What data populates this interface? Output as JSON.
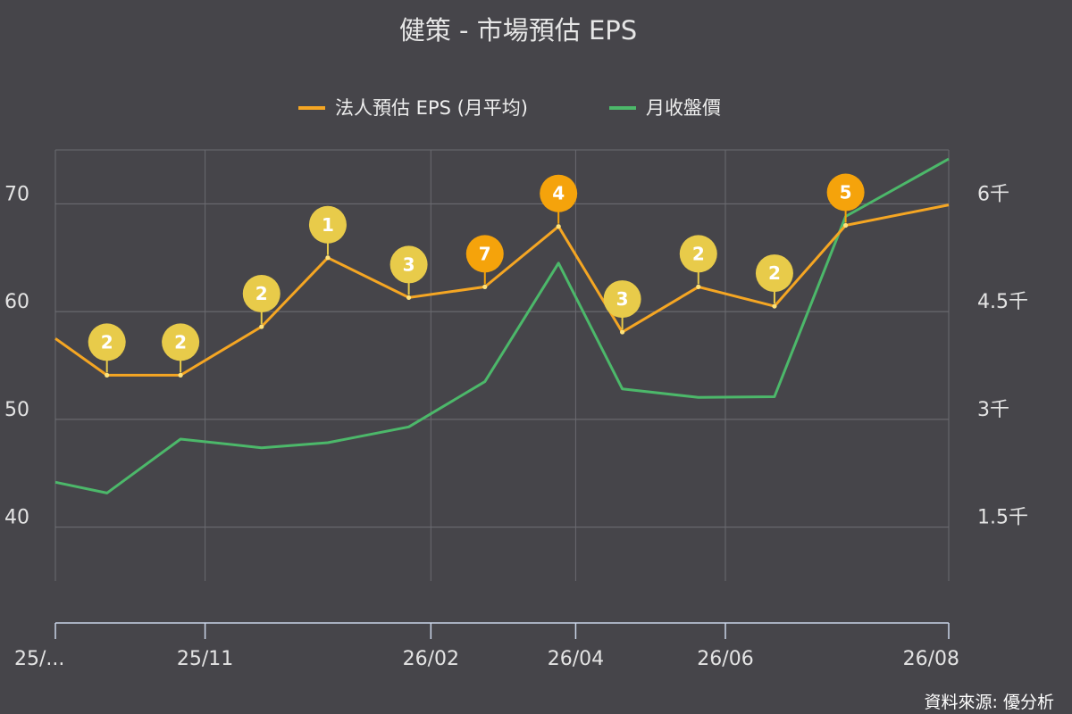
{
  "chart_data": {
    "type": "line",
    "title": "健策 - 市場預估 EPS",
    "source": "資料來源: 優分析",
    "x_ticks": [
      "25/...",
      "25/11",
      "26/02",
      "26/04",
      "26/06",
      "26/08"
    ],
    "y_left": {
      "ticks": [
        "40",
        "50",
        "60",
        "70"
      ],
      "range": [
        35,
        75
      ]
    },
    "y_right": {
      "ticks": [
        "1.5千",
        "3千",
        "4.5千",
        "6千"
      ],
      "range": [
        0.875,
        6.875
      ]
    },
    "grid": true,
    "legend_position": "top-center",
    "series": [
      {
        "name": "法人預估 EPS (月平均)",
        "color": "#f5a623",
        "axis": "left",
        "points": [
          [
            "2025-09-01",
            57.5
          ],
          [
            "2025-09-22",
            54.1
          ],
          [
            "2025-10-22",
            54.1
          ],
          [
            "2025-11-24",
            58.6
          ],
          [
            "2025-12-21",
            65.0
          ],
          [
            "2026-01-23",
            61.3
          ],
          [
            "2026-02-23",
            62.3
          ],
          [
            "2026-03-25",
            67.9
          ],
          [
            "2026-04-20",
            58.1
          ],
          [
            "2026-05-21",
            62.3
          ],
          [
            "2026-06-21",
            60.5
          ],
          [
            "2026-07-20",
            68.0
          ],
          [
            "2026-08-31",
            69.9
          ]
        ]
      },
      {
        "name": "月收盤價",
        "color": "#4cb86a",
        "axis": "right",
        "points": [
          [
            "2025-09-01",
            2.25
          ],
          [
            "2025-09-22",
            2.1
          ],
          [
            "2025-10-22",
            2.85
          ],
          [
            "2025-11-24",
            2.73
          ],
          [
            "2025-12-21",
            2.8
          ],
          [
            "2026-01-23",
            3.02
          ],
          [
            "2026-02-23",
            3.65
          ],
          [
            "2026-03-25",
            5.3
          ],
          [
            "2026-04-20",
            3.55
          ],
          [
            "2026-05-21",
            3.43
          ],
          [
            "2026-06-21",
            3.44
          ],
          [
            "2026-07-20",
            5.95
          ],
          [
            "2026-08-31",
            6.75
          ]
        ]
      }
    ],
    "annotations": [
      {
        "label": "2",
        "point": 1,
        "color": "#e8cb4a"
      },
      {
        "label": "2",
        "point": 2,
        "color": "#e8cb4a"
      },
      {
        "label": "2",
        "point": 3,
        "color": "#e8cb4a"
      },
      {
        "label": "1",
        "point": 4,
        "color": "#e8cb4a"
      },
      {
        "label": "3",
        "point": 5,
        "color": "#e8cb4a"
      },
      {
        "label": "7",
        "point": 6,
        "color": "#f5a30b"
      },
      {
        "label": "4",
        "point": 7,
        "color": "#f5a30b"
      },
      {
        "label": "3",
        "point": 8,
        "color": "#e8cb4a"
      },
      {
        "label": "2",
        "point": 9,
        "color": "#e8cb4a"
      },
      {
        "label": "2",
        "point": 10,
        "color": "#e8cb4a"
      },
      {
        "label": "5",
        "point": 11,
        "color": "#f5a30b"
      }
    ]
  }
}
